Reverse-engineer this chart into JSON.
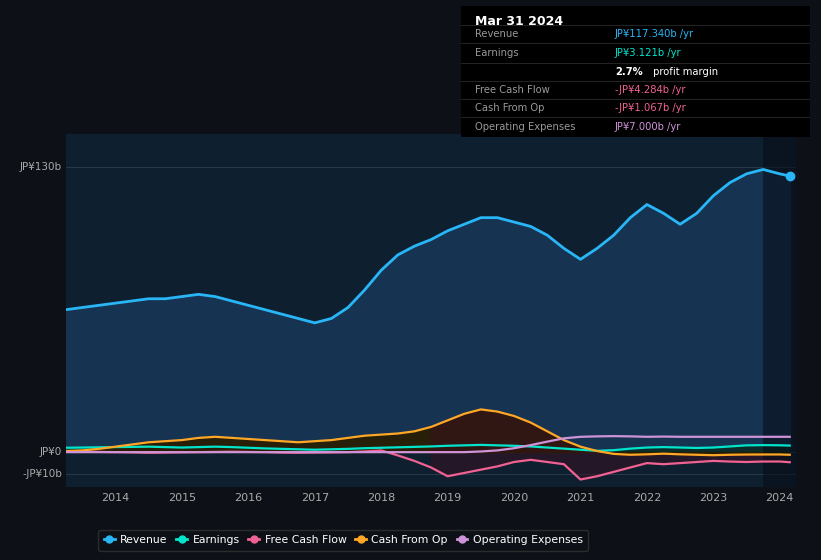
{
  "background_color": "#0d1117",
  "plot_bg_color": "#0e1f30",
  "years": [
    2013.25,
    2013.5,
    2013.75,
    2014.0,
    2014.25,
    2014.5,
    2014.75,
    2015.0,
    2015.25,
    2015.5,
    2015.75,
    2016.0,
    2016.25,
    2016.5,
    2016.75,
    2017.0,
    2017.25,
    2017.5,
    2017.75,
    2018.0,
    2018.25,
    2018.5,
    2018.75,
    2019.0,
    2019.25,
    2019.5,
    2019.75,
    2020.0,
    2020.25,
    2020.5,
    2020.75,
    2021.0,
    2021.25,
    2021.5,
    2021.75,
    2022.0,
    2022.25,
    2022.5,
    2022.75,
    2023.0,
    2023.25,
    2023.5,
    2023.75,
    2024.0,
    2024.15
  ],
  "revenue": [
    65,
    66,
    67,
    68,
    69,
    70,
    70,
    71,
    72,
    71,
    69,
    67,
    65,
    63,
    61,
    59,
    61,
    66,
    74,
    83,
    90,
    94,
    97,
    101,
    104,
    107,
    107,
    105,
    103,
    99,
    93,
    88,
    93,
    99,
    107,
    113,
    109,
    104,
    109,
    117,
    123,
    127,
    129,
    127,
    126
  ],
  "earnings": [
    2.0,
    2.1,
    2.2,
    2.3,
    2.4,
    2.5,
    2.3,
    2.1,
    2.3,
    2.5,
    2.3,
    2.0,
    1.7,
    1.5,
    1.3,
    1.1,
    1.3,
    1.5,
    1.8,
    2.0,
    2.2,
    2.4,
    2.6,
    2.9,
    3.1,
    3.3,
    3.1,
    2.9,
    2.6,
    2.1,
    1.6,
    1.1,
    0.6,
    0.9,
    1.6,
    2.1,
    2.3,
    2.1,
    1.9,
    2.1,
    2.6,
    3.1,
    3.2,
    3.121,
    3.0
  ],
  "free_cash_flow": [
    0.3,
    0.2,
    0.1,
    0.0,
    -0.1,
    -0.3,
    -0.2,
    -0.1,
    0.0,
    0.1,
    0.2,
    0.1,
    0.0,
    -0.2,
    -0.3,
    -0.2,
    -0.1,
    0.0,
    0.3,
    0.8,
    -1.5,
    -4.0,
    -7.0,
    -11.0,
    -9.5,
    -8.0,
    -6.5,
    -4.5,
    -3.5,
    -4.5,
    -5.5,
    -12.5,
    -11.0,
    -9.0,
    -7.0,
    -5.0,
    -5.5,
    -5.0,
    -4.5,
    -4.0,
    -4.3,
    -4.5,
    -4.284,
    -4.284,
    -4.6
  ],
  "cash_from_op": [
    0.5,
    0.8,
    1.5,
    2.5,
    3.5,
    4.5,
    5.0,
    5.5,
    6.5,
    7.0,
    6.5,
    6.0,
    5.5,
    5.0,
    4.5,
    5.0,
    5.5,
    6.5,
    7.5,
    8.0,
    8.5,
    9.5,
    11.5,
    14.5,
    17.5,
    19.5,
    18.5,
    16.5,
    13.5,
    9.5,
    5.5,
    2.5,
    0.5,
    -0.8,
    -1.2,
    -1.0,
    -0.7,
    -1.0,
    -1.2,
    -1.4,
    -1.2,
    -1.1,
    -1.067,
    -1.067,
    -1.2
  ],
  "operating_expenses": [
    0.0,
    0.0,
    0.0,
    0.0,
    0.0,
    0.0,
    0.0,
    0.0,
    0.0,
    0.0,
    0.0,
    0.0,
    0.0,
    0.0,
    0.0,
    0.0,
    0.0,
    0.0,
    0.0,
    0.0,
    0.0,
    0.0,
    0.0,
    0.0,
    0.0,
    0.3,
    0.8,
    1.8,
    3.2,
    4.8,
    6.3,
    7.0,
    7.2,
    7.3,
    7.2,
    7.0,
    7.1,
    7.0,
    7.0,
    7.0,
    7.0,
    7.0,
    7.0,
    7.0,
    7.0
  ],
  "revenue_color": "#29b6f6",
  "earnings_color": "#00e5cc",
  "free_cash_flow_color": "#f06292",
  "cash_from_op_color": "#ffa726",
  "operating_expenses_color": "#ce93d8",
  "x_ticks": [
    2014,
    2015,
    2016,
    2017,
    2018,
    2019,
    2020,
    2021,
    2022,
    2023,
    2024
  ],
  "ylim": [
    -16,
    145
  ],
  "ytick_positions": [
    130,
    0,
    -10
  ],
  "ytick_labels": [
    "JP¥130b",
    "JP¥0",
    "-JP¥10b"
  ],
  "legend": [
    {
      "label": "Revenue",
      "color": "#29b6f6"
    },
    {
      "label": "Earnings",
      "color": "#00e5cc"
    },
    {
      "label": "Free Cash Flow",
      "color": "#f06292"
    },
    {
      "label": "Cash From Op",
      "color": "#ffa726"
    },
    {
      "label": "Operating Expenses",
      "color": "#ce93d8"
    }
  ]
}
